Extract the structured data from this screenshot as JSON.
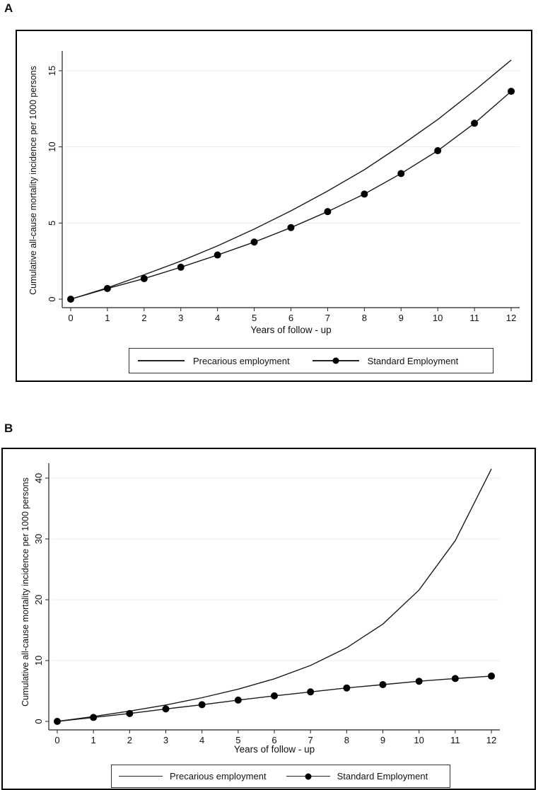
{
  "chart_data": [
    {
      "type": "line",
      "panel": "A",
      "title": "",
      "xlabel": "Years of follow - up",
      "ylabel": "Cumulative all-cause mortality incidence per 1000 persons",
      "x": [
        0,
        1,
        2,
        3,
        4,
        5,
        6,
        7,
        8,
        9,
        10,
        11,
        12
      ],
      "xticks": [
        "0",
        "1",
        "2",
        "3",
        "4",
        "5",
        "6",
        "7",
        "8",
        "9",
        "10",
        "11",
        "12"
      ],
      "yticks": [
        "0",
        "5",
        "10",
        "15"
      ],
      "xlim": [
        0,
        12
      ],
      "ylim": [
        0,
        15.5
      ],
      "grid": true,
      "series": [
        {
          "name": "Precarious employment",
          "marker": "none",
          "values": [
            0,
            0.75,
            1.6,
            2.5,
            3.5,
            4.6,
            5.8,
            7.1,
            8.5,
            10.1,
            11.8,
            13.7,
            15.7
          ]
        },
        {
          "name": "Standard Employment",
          "marker": "circle",
          "values": [
            0,
            0.7,
            1.35,
            2.1,
            2.9,
            3.75,
            4.7,
            5.75,
            6.9,
            8.25,
            9.75,
            11.55,
            13.65
          ]
        }
      ],
      "legend_position": "bottom"
    },
    {
      "type": "line",
      "panel": "B",
      "title": "",
      "xlabel": "Years of follow - up",
      "ylabel": "Cumulative all-cause mortality incidence per 1000 persons",
      "x": [
        0,
        1,
        2,
        3,
        4,
        5,
        6,
        7,
        8,
        9,
        10,
        11,
        12
      ],
      "xticks": [
        "0",
        "1",
        "2",
        "3",
        "4",
        "5",
        "6",
        "7",
        "8",
        "9",
        "10",
        "11",
        "12"
      ],
      "yticks": [
        "0",
        "10",
        "20",
        "30",
        "40"
      ],
      "xlim": [
        0,
        12
      ],
      "ylim": [
        0,
        42
      ],
      "grid": true,
      "series": [
        {
          "name": "Precarious employment",
          "marker": "none",
          "values": [
            0,
            0.8,
            1.7,
            2.7,
            3.9,
            5.3,
            7.0,
            9.2,
            12.1,
            16.0,
            21.6,
            29.7,
            41.5
          ]
        },
        {
          "name": "Standard Employment",
          "marker": "circle",
          "values": [
            0,
            0.65,
            1.3,
            2.05,
            2.75,
            3.5,
            4.2,
            4.85,
            5.5,
            6.05,
            6.6,
            7.05,
            7.45
          ]
        }
      ],
      "legend_position": "bottom"
    }
  ]
}
